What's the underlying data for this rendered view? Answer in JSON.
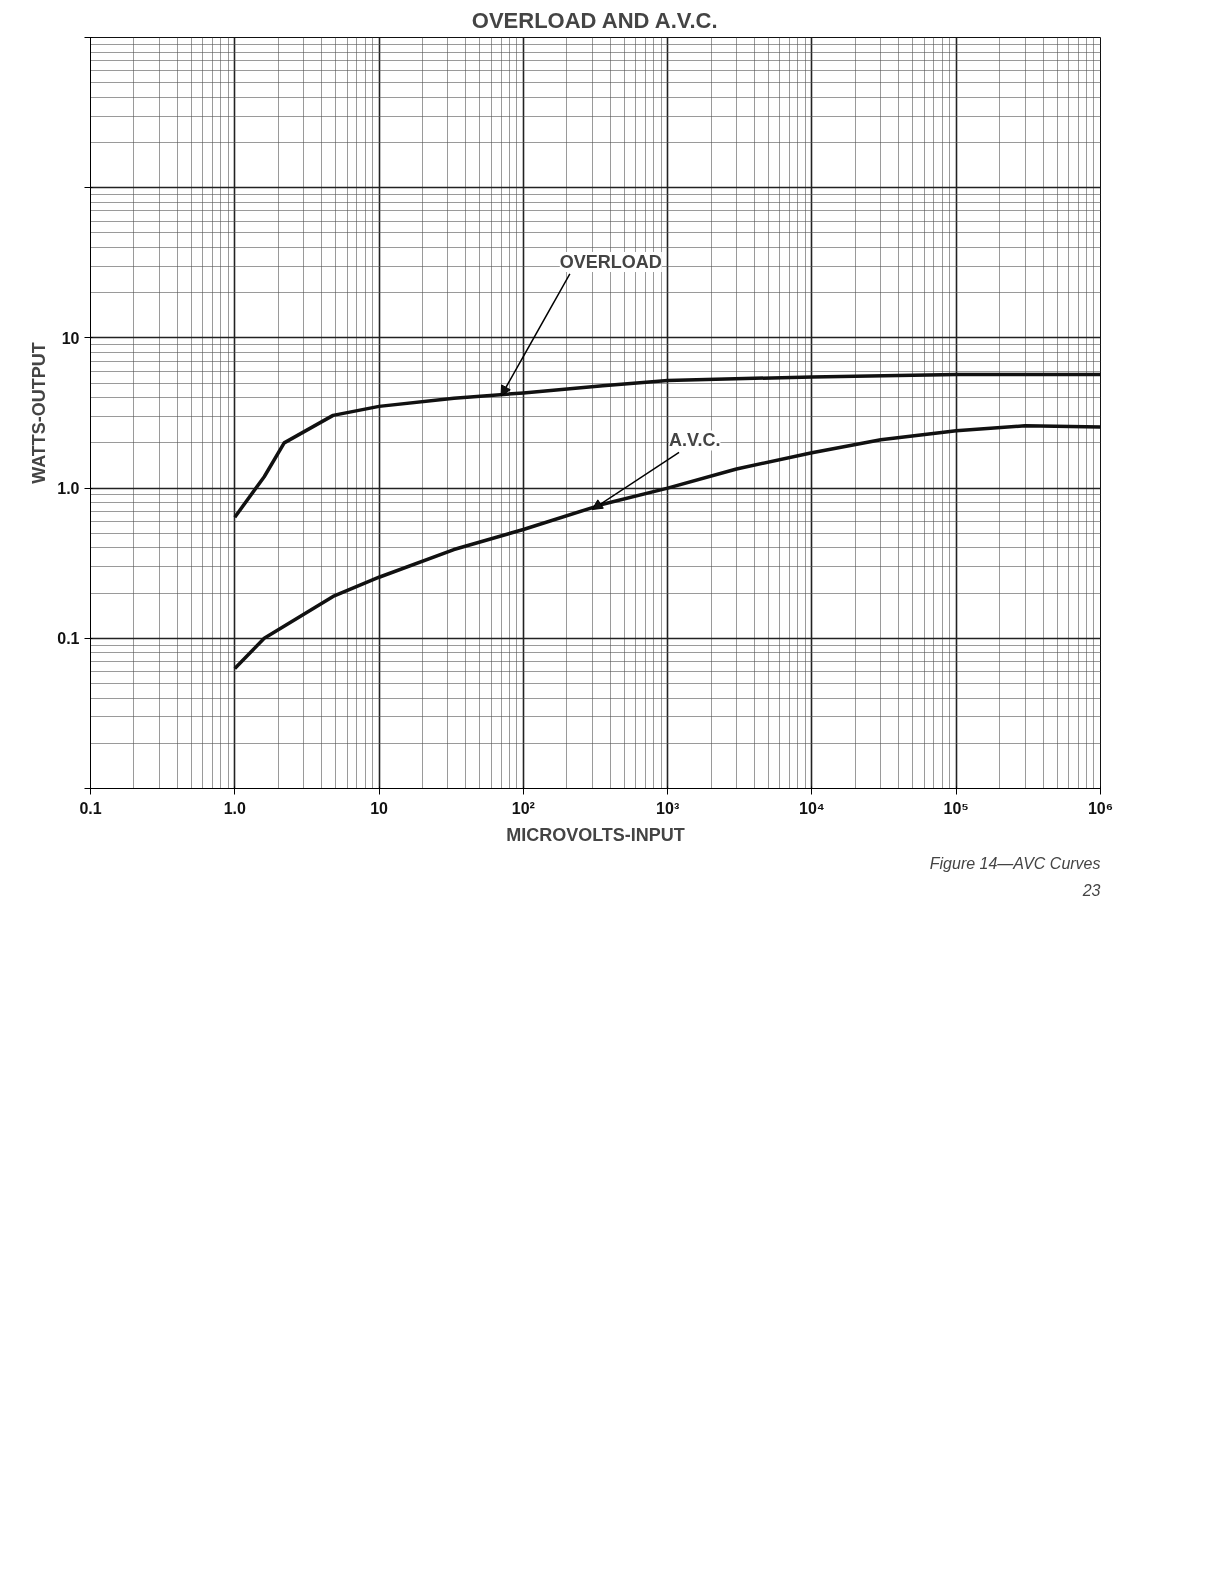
{
  "chart_data": {
    "type": "line",
    "title": "OVERLOAD AND A.V.C.",
    "xlabel": "MICROVOLTS-INPUT",
    "ylabel": "WATTS-OUTPUT",
    "log": "xy",
    "grid": true,
    "marker": "none",
    "line_style": "solid",
    "xlim": [
      0.1,
      1000000
    ],
    "ylim": [
      0.01,
      1000
    ],
    "xticks": [
      0.1,
      {
        "value": 1,
        "label": "1.0"
      },
      10,
      {
        "value": 100,
        "label": "10²"
      },
      {
        "value": 1000,
        "label": "10³"
      },
      {
        "value": 10000,
        "label": "10⁴"
      },
      {
        "value": 100000,
        "label": "10⁵"
      },
      {
        "value": 1000000,
        "label": "10⁶"
      }
    ],
    "yticks": [
      {
        "value": 0.01,
        "label": null
      },
      0.1,
      {
        "value": 1,
        "label": "1.0"
      },
      10,
      {
        "value": 100,
        "label": null
      },
      {
        "value": 1000,
        "label": null
      }
    ],
    "series": [
      {
        "color": "#111111",
        "x": [
          1,
          1.6,
          2.2,
          4.8,
          10,
          33,
          100,
          355,
          1000,
          10000,
          100000,
          1000000
        ],
        "values": [
          0.64,
          1.19,
          2.0,
          3.05,
          3.5,
          3.97,
          4.3,
          4.8,
          5.2,
          5.5,
          5.7,
          5.7
        ]
      },
      {
        "color": "#111111",
        "x": [
          1,
          1.6,
          4.8,
          10,
          33,
          100,
          355,
          1000,
          3000,
          10000,
          30000,
          100000,
          300000,
          1000000
        ],
        "values": [
          0.063,
          0.1,
          0.19,
          0.255,
          0.39,
          0.53,
          0.78,
          1.0,
          1.34,
          1.72,
          2.1,
          2.41,
          2.6,
          2.55
        ]
      }
    ],
    "annotations": [
      {
        "text": "OVERLOAD",
        "x": 70,
        "y": 4.1
      },
      {
        "text": "A.V.C.",
        "x": 300,
        "y": 0.72
      },
      "Figure 14—AVC Curves",
      "23"
    ]
  }
}
